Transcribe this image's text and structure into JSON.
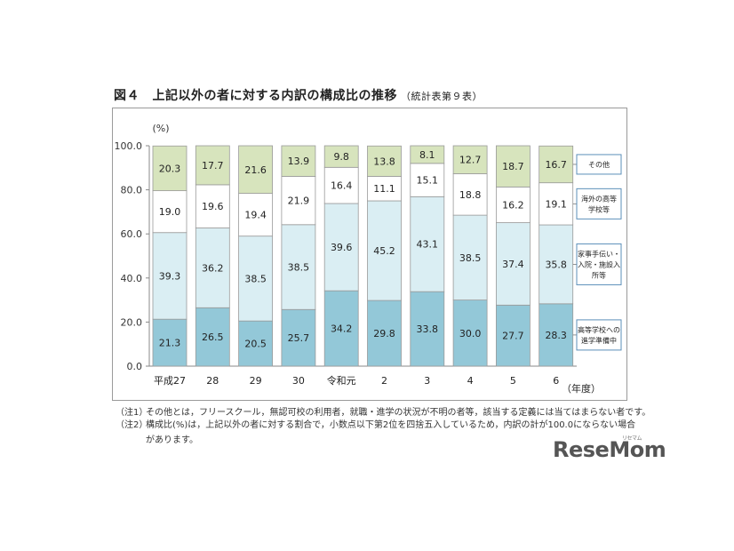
{
  "title": {
    "main": "図４　上記以外の者に対する内訳の構成比の推移",
    "sub": "（統計表第９表）"
  },
  "chart_data": {
    "type": "bar",
    "stacked": true,
    "ylabel": "(%)",
    "xlabel": "（年度）",
    "ylim": [
      0,
      100
    ],
    "yticks": [
      "0.0",
      "20.0",
      "40.0",
      "60.0",
      "80.0",
      "100.0"
    ],
    "categories": [
      "平成27",
      "28",
      "29",
      "30",
      "令和元",
      "2",
      "3",
      "4",
      "5",
      "6"
    ],
    "series": [
      {
        "name": "高等学校への進学準備中",
        "color": "#93c8d8",
        "values": [
          21.3,
          26.5,
          20.5,
          25.7,
          34.2,
          29.8,
          33.8,
          30.0,
          27.7,
          28.3
        ]
      },
      {
        "name": "家事手伝い・入院・施設入所等",
        "color": "#daeef3",
        "values": [
          39.3,
          36.2,
          38.5,
          38.5,
          39.6,
          45.2,
          43.1,
          38.5,
          37.4,
          35.8
        ]
      },
      {
        "name": "海外の高等学校等",
        "color": "#ffffff",
        "values": [
          19.0,
          19.6,
          19.4,
          21.9,
          16.4,
          11.1,
          15.1,
          18.8,
          16.2,
          19.1
        ]
      },
      {
        "name": "その他",
        "color": "#d7e4bd",
        "values": [
          20.3,
          17.7,
          21.6,
          13.9,
          9.8,
          13.8,
          8.1,
          12.7,
          18.7,
          16.7
        ]
      }
    ],
    "legend_labels": [
      {
        "series": 0,
        "lines": [
          "高等学校への",
          "進学準備中"
        ]
      },
      {
        "series": 1,
        "lines": [
          "家事手伝い・",
          "入院・施設入",
          "所等"
        ]
      },
      {
        "series": 2,
        "lines": [
          "海外の高等",
          "学校等"
        ]
      },
      {
        "series": 3,
        "lines": [
          "その他"
        ]
      }
    ],
    "legend_position": "right",
    "grid": false
  },
  "notes": [
    {
      "tag": "（注1）",
      "text": "その他とは，フリースクール，無認可校の利用者，就職・進学の状況が不明の者等，該当する定義には当てはまらない者です。"
    },
    {
      "tag": "（注2）",
      "text": "構成比(%)は，上記以外の者に対する割合で，小数点以下第2位を四捨五入しているため，内訳の計が100.0にならない場合",
      "cont": "があります。"
    }
  ],
  "logo": {
    "text": "ReseMom",
    "kana": "リセマム"
  }
}
